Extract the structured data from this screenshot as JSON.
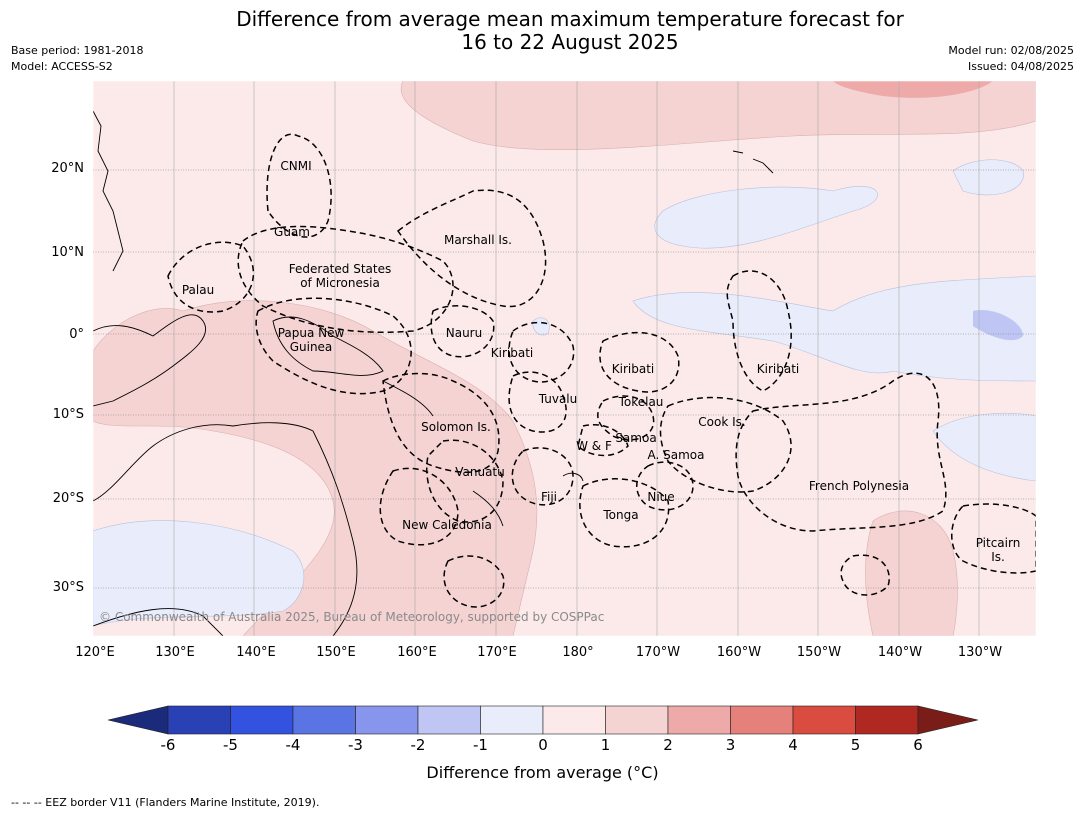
{
  "header": {
    "title_line1": "Difference from average mean maximum temperature forecast for",
    "title_line2": "16 to 22 August 2025",
    "base_period": "Base period: 1981-2018",
    "model": "Model: ACCESS-S2",
    "model_run": "Model run: 02/08/2025",
    "issued": "Issued: 04/08/2025"
  },
  "map": {
    "lat_labels": [
      "20°N",
      "10°N",
      "0°",
      "10°S",
      "20°S",
      "30°S"
    ],
    "lon_labels": [
      "120°E",
      "130°E",
      "140°E",
      "150°E",
      "160°E",
      "170°E",
      "180°",
      "170°W",
      "160°W",
      "150°W",
      "140°W",
      "130°W"
    ],
    "regions": [
      "CNMI",
      "Guam",
      "Marshall Is.",
      "Palau",
      "Federated States",
      "of Micronesia",
      "Papua New",
      "Guinea",
      "Nauru",
      "Kiribati",
      "Kiribati",
      "Kiribati",
      "Tuvalu",
      "Tokelau",
      "Solomon Is.",
      "Samoa",
      "W & F",
      "A. Samoa",
      "Cook Is.",
      "Vanuatu",
      "Fiji",
      "Niue",
      "Tonga",
      "French Polynesia",
      "New Caledonia",
      "Pitcairn",
      "Is."
    ],
    "copyright": "© Commonwealth of Australia 2025, Bureau of Meteorology, supported by COSPPac"
  },
  "legend": {
    "ticks": [
      "-6",
      "-5",
      "-4",
      "-3",
      "-2",
      "-1",
      "0",
      "1",
      "2",
      "3",
      "4",
      "5",
      "6"
    ],
    "colors": [
      "#1b2a7a",
      "#2a40b5",
      "#3352e0",
      "#5a74e3",
      "#8796ec",
      "#bfc6f3",
      "#e8ecfb",
      "#fceaea",
      "#f5d3d3",
      "#edaaa8",
      "#e5807b",
      "#da4b40",
      "#b02822",
      "#7a1d19"
    ],
    "title": "Difference from average (°C)"
  },
  "footer": "--  --  -- EEZ border V11 (Flanders Marine Institute, 2019)."
}
